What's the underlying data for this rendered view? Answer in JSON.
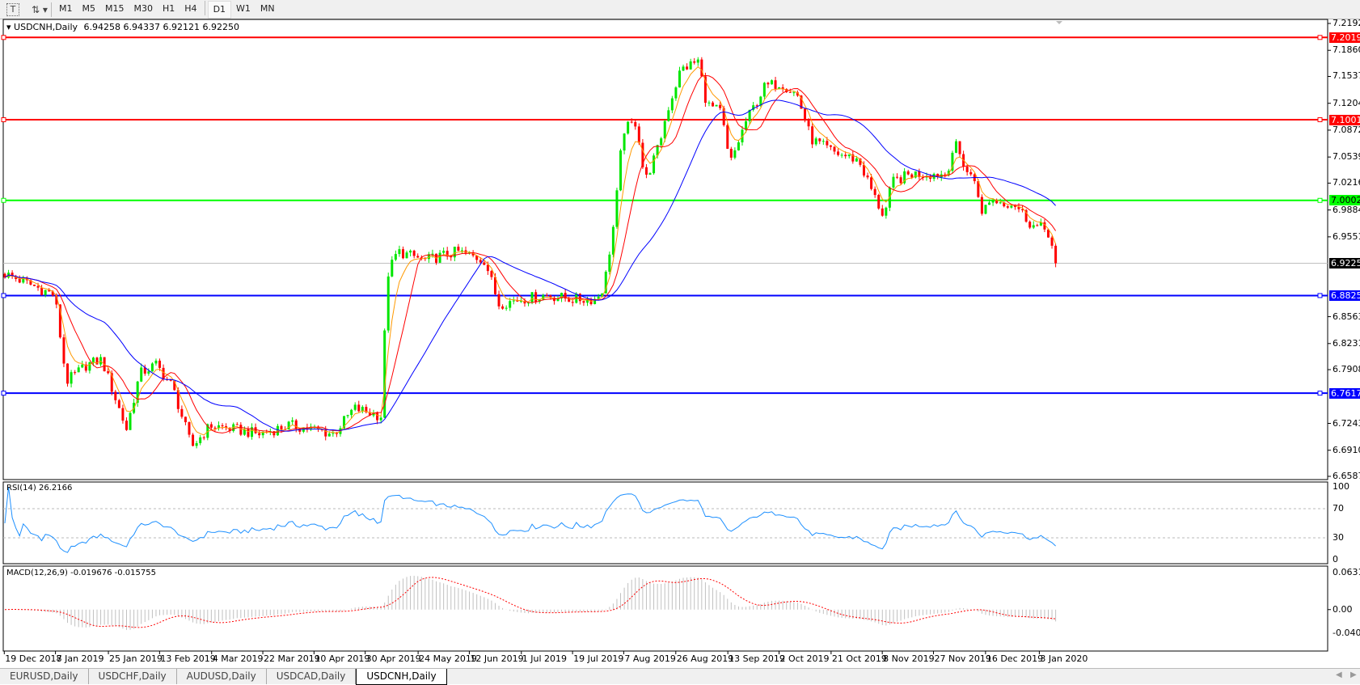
{
  "toolbar": {
    "icons": [
      "text-tool-icon",
      "objects-dropdown-icon"
    ],
    "timeframes": [
      "M1",
      "M5",
      "M15",
      "M30",
      "H1",
      "H4",
      "D1",
      "W1",
      "MN"
    ],
    "active_timeframe": "D1"
  },
  "chart": {
    "symbol_title": "USDCNH,Daily",
    "ohlc": "6.94258 6.94337 6.92121 6.92250",
    "current_price": "6.92250",
    "colors": {
      "bull": "#00e600",
      "bear": "#ff0000",
      "ma_fast": "#ff9900",
      "ma_mid": "#ff0000",
      "ma_slow": "#0000ff",
      "rsi": "#1e90ff",
      "macd_hist": "#c0c0c0",
      "macd_signal": "#ff0000"
    }
  },
  "chart_data": {
    "type": "candlestick",
    "title": "USDCNH,Daily",
    "ylim": [
      6.65875,
      7.21925
    ],
    "price_ticks": [
      "7.21925",
      "7.18600",
      "7.15370",
      "7.12045",
      "7.08720",
      "7.05395",
      "7.02165",
      "6.98840",
      "6.95515",
      "6.85635",
      "6.82310",
      "6.79080",
      "6.72430",
      "6.69105",
      "6.65875"
    ],
    "x_ticks": [
      "19 Dec 2018",
      "7 Jan 2019",
      "25 Jan 2019",
      "13 Feb 2019",
      "4 Mar 2019",
      "22 Mar 2019",
      "10 Apr 2019",
      "30 Apr 2019",
      "24 May 2019",
      "12 Jun 2019",
      "1 Jul 2019",
      "19 Jul 2019",
      "7 Aug 2019",
      "26 Aug 2019",
      "13 Sep 2019",
      "2 Oct 2019",
      "21 Oct 2019",
      "8 Nov 2019",
      "27 Nov 2019",
      "16 Dec 2019",
      "3 Jan 2020"
    ],
    "x_tick_dates": [
      "2018-12-19",
      "2019-01-07",
      "2019-01-25",
      "2019-02-13",
      "2019-03-04",
      "2019-03-22",
      "2019-04-10",
      "2019-04-30",
      "2019-05-24",
      "2019-06-12",
      "2019-07-01",
      "2019-07-19",
      "2019-08-07",
      "2019-08-26",
      "2019-09-13",
      "2019-10-02",
      "2019-10-21",
      "2019-11-08",
      "2019-11-27",
      "2019-12-16",
      "2020-01-03"
    ],
    "approx_closes": [
      [
        "2018-12-19",
        6.91
      ],
      [
        "2018-12-27",
        6.899
      ],
      [
        "2019-01-07",
        6.883
      ],
      [
        "2019-01-11",
        6.776
      ],
      [
        "2019-01-18",
        6.797
      ],
      [
        "2019-01-23",
        6.803
      ],
      [
        "2019-02-01",
        6.717
      ],
      [
        "2019-02-06",
        6.786
      ],
      [
        "2019-02-12",
        6.797
      ],
      [
        "2019-02-18",
        6.77
      ],
      [
        "2019-02-25",
        6.695
      ],
      [
        "2019-03-04",
        6.722
      ],
      [
        "2019-03-12",
        6.717
      ],
      [
        "2019-03-21",
        6.711
      ],
      [
        "2019-04-01",
        6.722
      ],
      [
        "2019-04-10",
        6.717
      ],
      [
        "2019-04-18",
        6.711
      ],
      [
        "2019-04-26",
        6.743
      ],
      [
        "2019-05-08",
        6.733
      ],
      [
        "2019-05-10",
        6.905
      ],
      [
        "2019-05-15",
        6.937
      ],
      [
        "2019-05-27",
        6.926
      ],
      [
        "2019-06-08",
        6.937
      ],
      [
        "2019-06-18",
        6.926
      ],
      [
        "2019-06-23",
        6.872
      ],
      [
        "2019-07-01",
        6.878
      ],
      [
        "2019-07-10",
        6.883
      ],
      [
        "2019-07-19",
        6.878
      ],
      [
        "2019-07-28",
        6.878
      ],
      [
        "2019-07-31",
        6.894
      ],
      [
        "2019-08-04",
        6.98
      ],
      [
        "2019-08-07",
        7.087
      ],
      [
        "2019-08-12",
        7.098
      ],
      [
        "2019-08-15",
        7.023
      ],
      [
        "2019-08-20",
        7.066
      ],
      [
        "2019-08-23",
        7.109
      ],
      [
        "2019-08-28",
        7.162
      ],
      [
        "2019-09-03",
        7.173
      ],
      [
        "2019-09-06",
        7.119
      ],
      [
        "2019-09-11",
        7.109
      ],
      [
        "2019-09-14",
        7.044
      ],
      [
        "2019-09-20",
        7.098
      ],
      [
        "2019-09-27",
        7.141
      ],
      [
        "2019-10-03",
        7.146
      ],
      [
        "2019-10-09",
        7.13
      ],
      [
        "2019-10-14",
        7.076
      ],
      [
        "2019-10-22",
        7.06
      ],
      [
        "2019-10-31",
        7.05
      ],
      [
        "2019-11-06",
        7.001
      ],
      [
        "2019-11-09",
        6.98
      ],
      [
        "2019-11-12",
        7.023
      ],
      [
        "2019-11-19",
        7.033
      ],
      [
        "2019-11-25",
        7.033
      ],
      [
        "2019-12-02",
        7.033
      ],
      [
        "2019-12-05",
        7.071
      ],
      [
        "2019-12-10",
        7.033
      ],
      [
        "2019-12-13",
        7.023
      ],
      [
        "2019-12-15",
        6.98
      ],
      [
        "2019-12-17",
        7.001
      ],
      [
        "2019-12-26",
        6.996
      ],
      [
        "2020-01-01",
        6.969
      ],
      [
        "2020-01-06",
        6.964
      ],
      [
        "2020-01-09",
        6.9225
      ]
    ],
    "horizontal_lines": [
      {
        "price": "7.20193",
        "color": "#ff0000"
      },
      {
        "price": "7.10011",
        "color": "#ff0000"
      },
      {
        "price": "7.00029",
        "color": "#00ff00"
      },
      {
        "price": "6.88250",
        "color": "#0000ff"
      },
      {
        "price": "6.76171",
        "color": "#0000ff"
      }
    ],
    "rsi": {
      "label": "RSI(14) 26.2166",
      "ticks": [
        "100",
        "70",
        "30",
        "0"
      ],
      "levels": [
        70,
        30
      ]
    },
    "macd": {
      "label": "MACD(12,26,9) -0.019676 -0.015755",
      "ticks": [
        "0.063184",
        "0.00",
        "-0.04035"
      ],
      "ylim": [
        -0.040355,
        0.063184
      ]
    }
  },
  "tabs": [
    "EURUSD,Daily",
    "USDCHF,Daily",
    "AUDUSD,Daily",
    "USDCAD,Daily",
    "USDCNH,Daily"
  ],
  "active_tab": "USDCNH,Daily"
}
